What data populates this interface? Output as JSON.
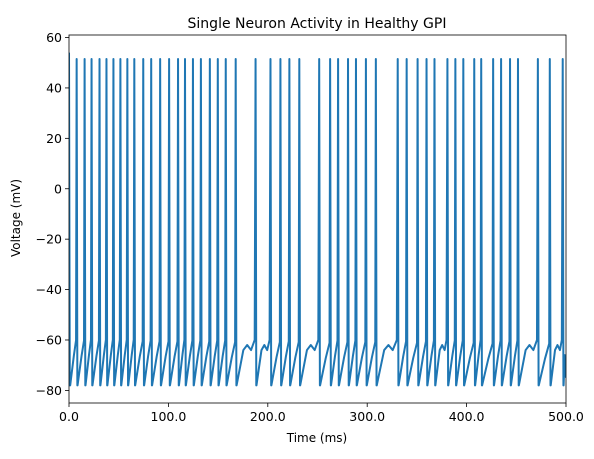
{
  "chart_data": {
    "type": "line",
    "title": "Single Neuron Activity in Healthy GPI",
    "xlabel": "Time (ms)",
    "ylabel": "Voltage (mV)",
    "xlim": [
      0,
      500
    ],
    "ylim": [
      -85,
      61
    ],
    "grid": false,
    "x_ticks": [
      {
        "value": 0,
        "label": "0.0"
      },
      {
        "value": 100,
        "label": "100.0"
      },
      {
        "value": 200,
        "label": "200.0"
      },
      {
        "value": 300,
        "label": "300.0"
      },
      {
        "value": 400,
        "label": "400.0"
      },
      {
        "value": 500,
        "label": "500.0"
      }
    ],
    "y_ticks": [
      {
        "value": -80,
        "label": "−80"
      },
      {
        "value": -60,
        "label": "−60"
      },
      {
        "value": -40,
        "label": "−40"
      },
      {
        "value": -20,
        "label": "−20"
      },
      {
        "value": 0,
        "label": "0"
      },
      {
        "value": 20,
        "label": "20"
      },
      {
        "value": 40,
        "label": "40"
      },
      {
        "value": 60,
        "label": "60"
      }
    ],
    "series": [
      {
        "color": "#1f77b4",
        "initial_voltage": 54,
        "resting_voltage": -78,
        "spike_peak": 51.5,
        "spike_times": [
          8,
          16,
          23,
          31,
          38,
          45,
          52,
          59,
          66,
          75,
          83,
          92,
          101,
          110,
          117,
          125,
          133,
          142,
          150,
          158,
          168,
          188,
          203,
          213,
          222,
          232,
          252,
          263,
          271,
          281,
          289,
          299,
          309,
          331,
          340,
          351,
          360,
          368,
          381,
          389,
          397,
          408,
          415,
          427,
          435,
          444,
          452,
          472,
          484,
          497
        ]
      }
    ]
  }
}
